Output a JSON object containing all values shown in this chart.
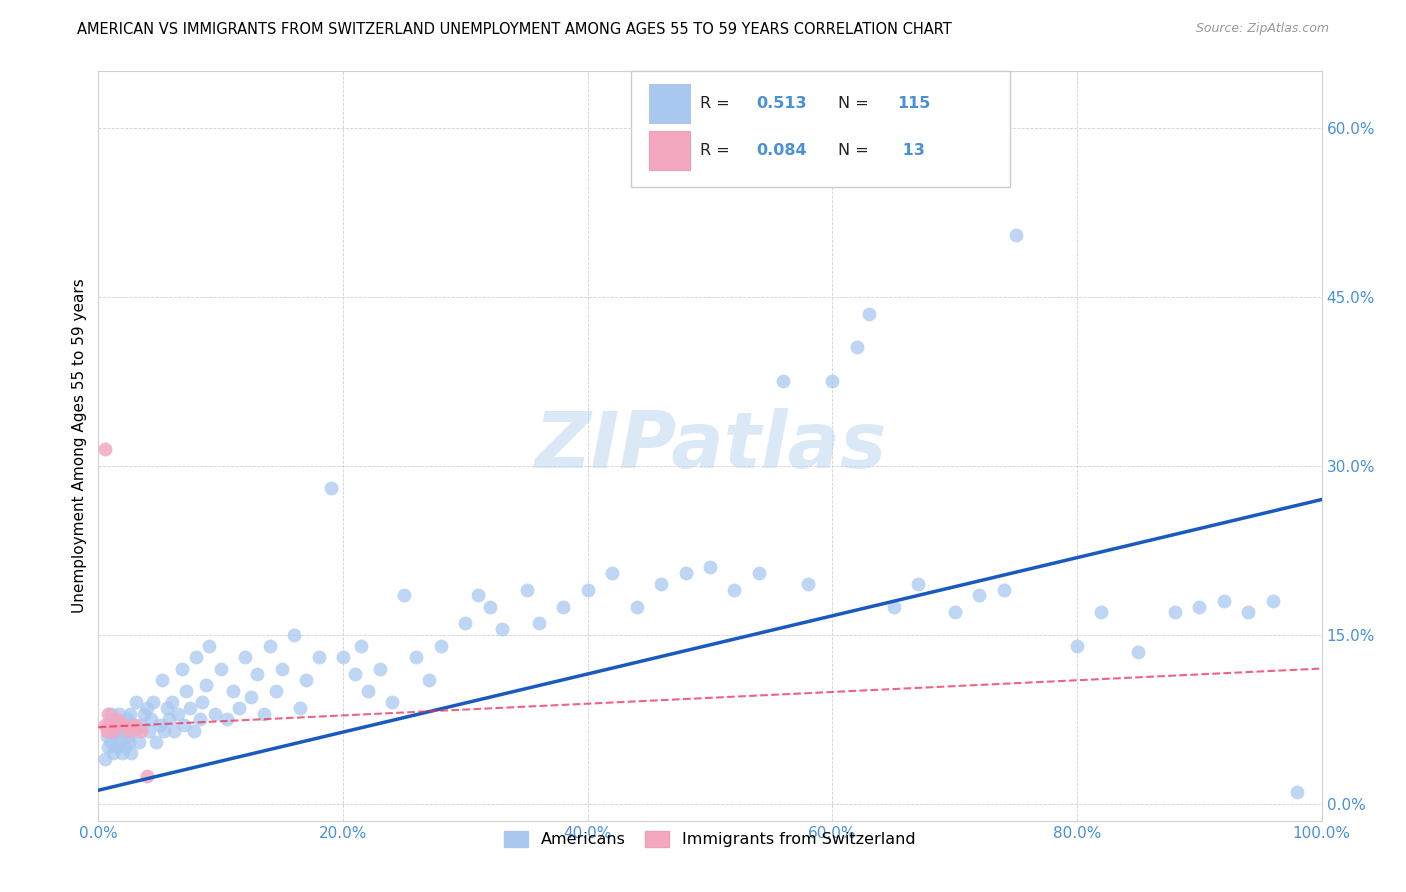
{
  "title": "AMERICAN VS IMMIGRANTS FROM SWITZERLAND UNEMPLOYMENT AMONG AGES 55 TO 59 YEARS CORRELATION CHART",
  "source": "Source: ZipAtlas.com",
  "ylabel": "Unemployment Among Ages 55 to 59 years",
  "r_american": 0.513,
  "n_american": 115,
  "r_swiss": 0.084,
  "n_swiss": 13,
  "american_color": "#a8c8f0",
  "swiss_color": "#f4a8c0",
  "american_line_color": "#1a5abf",
  "swiss_line_color": "#e8305a",
  "watermark": "ZIPatlas",
  "background_color": "#ffffff",
  "grid_color": "#cccccc",
  "axis_tick_color": "#4a90d9",
  "title_fontsize": 10.5,
  "ylabel_fontsize": 11,
  "tick_fontsize": 11,
  "marker_size": 10,
  "x_ticks": [
    0.0,
    0.2,
    0.4,
    0.6,
    0.8,
    1.0
  ],
  "y_ticks": [
    0.0,
    0.15,
    0.3,
    0.45,
    0.6
  ],
  "xlim": [
    0.0,
    1.0
  ],
  "ylim": [
    -0.015,
    0.65
  ],
  "am_line_x": [
    0.0,
    1.0
  ],
  "am_line_y": [
    0.012,
    0.27
  ],
  "sw_line_x": [
    0.0,
    1.0
  ],
  "sw_line_y": [
    0.068,
    0.12
  ],
  "am_x": [
    0.005,
    0.007,
    0.008,
    0.009,
    0.01,
    0.01,
    0.011,
    0.012,
    0.013,
    0.014,
    0.015,
    0.015,
    0.016,
    0.017,
    0.018,
    0.019,
    0.02,
    0.021,
    0.022,
    0.023,
    0.024,
    0.025,
    0.026,
    0.027,
    0.028,
    0.03,
    0.031,
    0.033,
    0.035,
    0.037,
    0.04,
    0.041,
    0.043,
    0.045,
    0.047,
    0.05,
    0.052,
    0.054,
    0.056,
    0.058,
    0.06,
    0.062,
    0.065,
    0.068,
    0.07,
    0.072,
    0.075,
    0.078,
    0.08,
    0.083,
    0.085,
    0.088,
    0.09,
    0.095,
    0.1,
    0.105,
    0.11,
    0.115,
    0.12,
    0.125,
    0.13,
    0.135,
    0.14,
    0.145,
    0.15,
    0.16,
    0.165,
    0.17,
    0.18,
    0.19,
    0.2,
    0.21,
    0.215,
    0.22,
    0.23,
    0.24,
    0.25,
    0.26,
    0.27,
    0.28,
    0.3,
    0.31,
    0.32,
    0.33,
    0.35,
    0.36,
    0.38,
    0.4,
    0.42,
    0.44,
    0.46,
    0.48,
    0.5,
    0.52,
    0.54,
    0.56,
    0.58,
    0.6,
    0.62,
    0.63,
    0.65,
    0.67,
    0.7,
    0.72,
    0.74,
    0.75,
    0.8,
    0.82,
    0.85,
    0.88,
    0.9,
    0.92,
    0.94,
    0.96,
    0.98
  ],
  "am_y": [
    0.04,
    0.06,
    0.05,
    0.07,
    0.055,
    0.08,
    0.065,
    0.045,
    0.07,
    0.06,
    0.075,
    0.05,
    0.065,
    0.08,
    0.055,
    0.045,
    0.07,
    0.065,
    0.05,
    0.075,
    0.06,
    0.055,
    0.08,
    0.045,
    0.07,
    0.065,
    0.09,
    0.055,
    0.07,
    0.08,
    0.085,
    0.065,
    0.075,
    0.09,
    0.055,
    0.07,
    0.11,
    0.065,
    0.085,
    0.075,
    0.09,
    0.065,
    0.08,
    0.12,
    0.07,
    0.1,
    0.085,
    0.065,
    0.13,
    0.075,
    0.09,
    0.105,
    0.14,
    0.08,
    0.12,
    0.075,
    0.1,
    0.085,
    0.13,
    0.095,
    0.115,
    0.08,
    0.14,
    0.1,
    0.12,
    0.15,
    0.085,
    0.11,
    0.13,
    0.28,
    0.13,
    0.115,
    0.14,
    0.1,
    0.12,
    0.09,
    0.185,
    0.13,
    0.11,
    0.14,
    0.16,
    0.185,
    0.175,
    0.155,
    0.19,
    0.16,
    0.175,
    0.19,
    0.205,
    0.175,
    0.195,
    0.205,
    0.21,
    0.19,
    0.205,
    0.375,
    0.195,
    0.375,
    0.405,
    0.435,
    0.175,
    0.195,
    0.17,
    0.185,
    0.19,
    0.505,
    0.14,
    0.17,
    0.135,
    0.17,
    0.175,
    0.18,
    0.17,
    0.18,
    0.01
  ],
  "sw_x": [
    0.005,
    0.007,
    0.008,
    0.01,
    0.012,
    0.015,
    0.018,
    0.022,
    0.025,
    0.03,
    0.035,
    0.04,
    0.005
  ],
  "sw_y": [
    0.07,
    0.065,
    0.08,
    0.07,
    0.065,
    0.075,
    0.07,
    0.07,
    0.065,
    0.07,
    0.065,
    0.025,
    0.315
  ]
}
